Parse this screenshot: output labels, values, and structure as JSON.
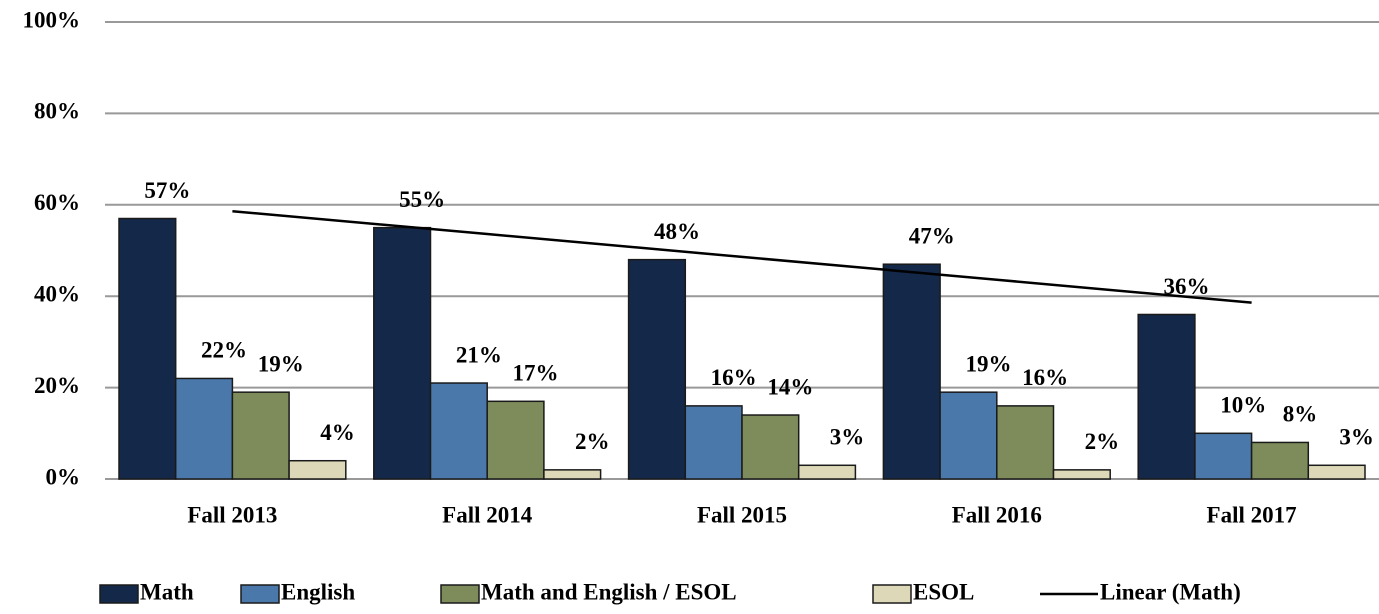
{
  "chart_data": {
    "type": "bar",
    "categories": [
      "Fall 2013",
      "Fall 2014",
      "Fall 2015",
      "Fall 2016",
      "Fall 2017"
    ],
    "series": [
      {
        "name": "Math",
        "color": "#14284a",
        "values": [
          57,
          55,
          48,
          47,
          36
        ],
        "value_labels": [
          "57%",
          "55%",
          "48%",
          "47%",
          "36%"
        ]
      },
      {
        "name": "English",
        "color": "#4a78aa",
        "values": [
          22,
          21,
          16,
          19,
          10
        ],
        "value_labels": [
          "22%",
          "21%",
          "16%",
          "19%",
          "10%"
        ]
      },
      {
        "name": "Math and English / ESOL",
        "color": "#7d8c5a",
        "values": [
          19,
          17,
          14,
          16,
          8
        ],
        "value_labels": [
          "19%",
          "17%",
          "14%",
          "16%",
          "8%"
        ]
      },
      {
        "name": "ESOL",
        "color": "#ddd9b8",
        "values": [
          4,
          2,
          3,
          2,
          3
        ],
        "value_labels": [
          "4%",
          "2%",
          "3%",
          "2%",
          "3%"
        ]
      },
      {
        "name": "Linear (Math)",
        "type": "line",
        "color": "#000000",
        "values": [
          58.6,
          53.6,
          48.6,
          43.6,
          38.6
        ]
      }
    ],
    "ylim": [
      0,
      100
    ],
    "yticks": [
      {
        "value": 0,
        "label": "0%"
      },
      {
        "value": 20,
        "label": "20%"
      },
      {
        "value": 40,
        "label": "40%"
      },
      {
        "value": 60,
        "label": "60%"
      },
      {
        "value": 80,
        "label": "80%"
      },
      {
        "value": 100,
        "label": "100%"
      }
    ],
    "grid": true,
    "legend": "bottom"
  }
}
